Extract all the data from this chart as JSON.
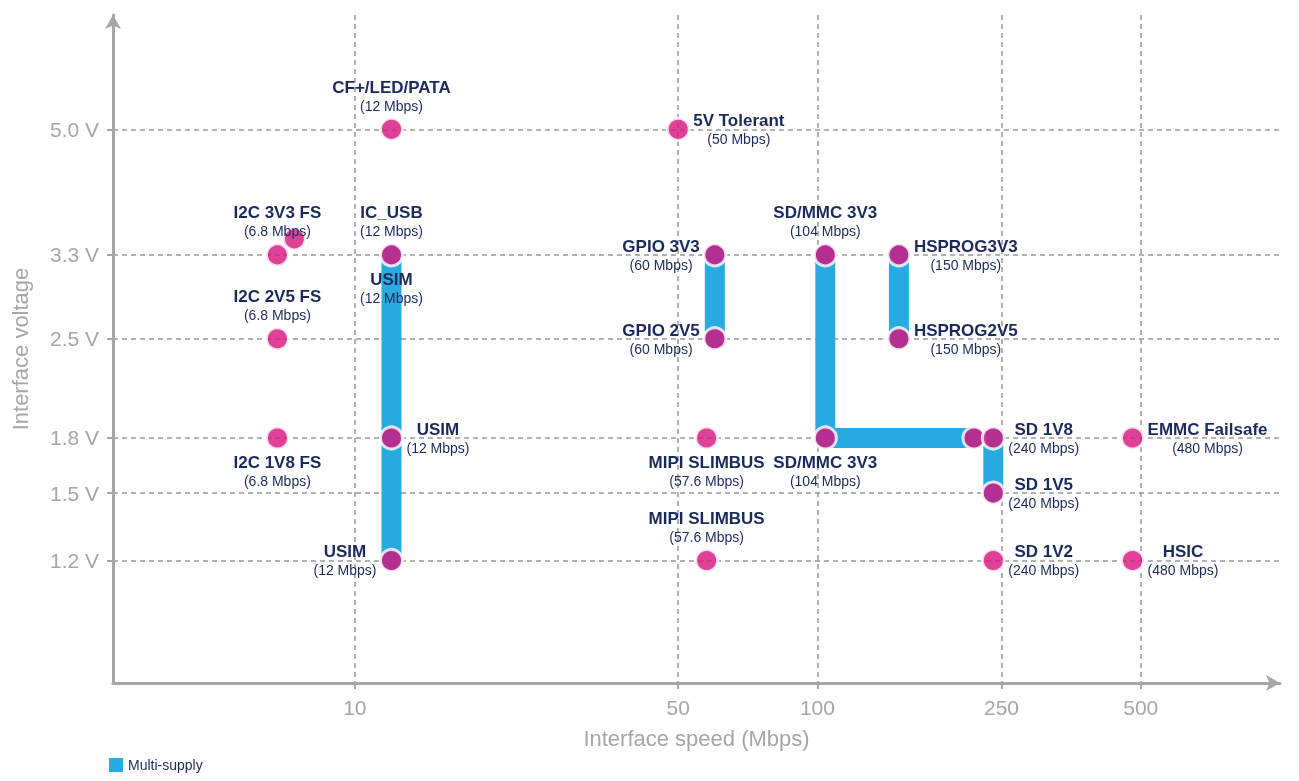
{
  "chart_data": {
    "type": "scatter",
    "xlabel": "Interface speed (Mbps)",
    "ylabel": "Interface voltage",
    "xlim": [
      3,
      1000
    ],
    "xticks": [
      10,
      50,
      100,
      250,
      500
    ],
    "log": "xy",
    "ylim": [
      0.8,
      7.3
    ],
    "yticks": [
      {
        "value": 1.2,
        "label": "1.2 V"
      },
      {
        "value": 1.5,
        "label": "1.5 V"
      },
      {
        "value": 1.8,
        "label": "1.8 V"
      },
      {
        "value": 2.5,
        "label": "2.5 V"
      },
      {
        "value": 3.3,
        "label": "3.3 V"
      },
      {
        "value": 5.0,
        "label": "5.0 V"
      }
    ],
    "grid": true,
    "legend": "bottom left",
    "series": [
      {
        "type": "line",
        "name": "Multi-supply",
        "color": "#29abe2",
        "line_style": "solid",
        "marker": "none",
        "x": [
          12,
          12,
          null,
          60,
          60,
          null,
          104,
          104,
          218,
          null,
          150,
          150,
          null,
          240,
          240
        ],
        "values": [
          3.3,
          1.2,
          null,
          3.3,
          2.5,
          null,
          3.3,
          1.8,
          1.8,
          null,
          3.3,
          2.5,
          null,
          1.8,
          1.5
        ]
      },
      {
        "color": "#d6127c",
        "marker": "circle",
        "x": [
          12,
          50,
          6.8,
          7.4,
          12,
          60,
          60,
          104,
          150,
          150,
          6.8,
          6.8,
          12,
          57.6,
          104,
          218,
          240,
          480,
          240,
          12,
          57.6,
          240,
          480
        ],
        "values": [
          5.0,
          5.0,
          3.3,
          3.48,
          3.3,
          3.3,
          2.5,
          3.3,
          3.3,
          2.5,
          2.5,
          1.8,
          1.8,
          1.8,
          1.8,
          1.8,
          1.8,
          1.8,
          1.5,
          1.2,
          1.2,
          1.2,
          1.2
        ]
      }
    ],
    "annotations": [
      {
        "text": "CF+/LED/PATA\n(12 Mbps)",
        "x": 12,
        "y": 5.0
      },
      {
        "text": "5V Tolerant\n(50 Mbps)",
        "x": 50,
        "y": 5.0
      },
      {
        "text": "I2C 3V3 FS\n(6.8 Mbps)",
        "x": 6.8,
        "y": 3.3
      },
      {
        "text": "IC_USB\n(12 Mbps)",
        "x": 12,
        "y": 3.3
      },
      {
        "text": "USIM\n(12 Mbps)",
        "x": 12,
        "y": 3.3
      },
      {
        "text": "GPIO 3V3\n(60 Mbps)",
        "x": 60,
        "y": 3.3
      },
      {
        "text": "GPIO 2V5\n(60 Mbps)",
        "x": 60,
        "y": 2.5
      },
      {
        "text": "SD/MMC 3V3\n(104 Mbps)",
        "x": 104,
        "y": 3.3
      },
      {
        "text": "HSPROG3V3\n(150 Mbps)",
        "x": 150,
        "y": 3.3
      },
      {
        "text": "HSPROG2V5\n(150 Mbps)",
        "x": 150,
        "y": 2.5
      },
      {
        "text": "I2C 2V5 FS\n(6.8 Mbps)",
        "x": 6.8,
        "y": 2.5
      },
      {
        "text": "I2C 1V8 FS\n(6.8 Mbps)",
        "x": 6.8,
        "y": 1.8
      },
      {
        "text": "USIM\n(12 Mbps)",
        "x": 12,
        "y": 1.8
      },
      {
        "text": "MIPI SLIMBUS\n(57.6 Mbps)",
        "x": 57.6,
        "y": 1.8
      },
      {
        "text": "SD/MMC 3V3\n(104 Mbps)",
        "x": 104,
        "y": 1.8
      },
      {
        "text": "SD 1V8\n(240 Mbps)",
        "x": 240,
        "y": 1.8
      },
      {
        "text": "EMMC Failsafe\n(480 Mbps)",
        "x": 480,
        "y": 1.8
      },
      {
        "text": "SD 1V5\n(240 Mbps)",
        "x": 240,
        "y": 1.5
      },
      {
        "text": "USIM\n(12 Mbps)",
        "x": 12,
        "y": 1.2
      },
      {
        "text": "MIPI SLIMBUS\n(57.6 Mbps)",
        "x": 57.6,
        "y": 1.2
      },
      {
        "text": "SD 1V2\n(240 Mbps)",
        "x": 240,
        "y": 1.2
      },
      {
        "text": "HSIC\n(480 Mbps)",
        "x": 480,
        "y": 1.2
      }
    ]
  }
}
